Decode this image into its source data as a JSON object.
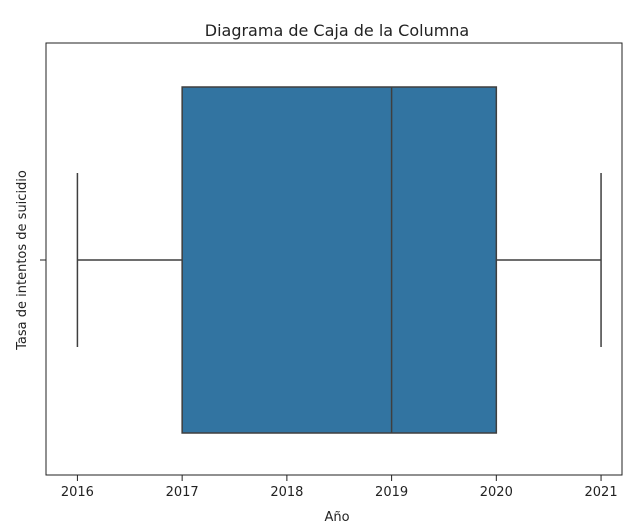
{
  "chart_data": {
    "type": "boxplot",
    "title": "Diagrama de Caja de la Columna",
    "xlabel": "Año",
    "ylabel": "Tasa de intentos de suicidio",
    "orientation": "horizontal",
    "xlim": [
      2015.7,
      2021.2
    ],
    "xticks": [
      2016,
      2017,
      2018,
      2019,
      2020,
      2021
    ],
    "xtick_labels": [
      "2016",
      "2017",
      "2018",
      "2019",
      "2020",
      "2021"
    ],
    "box": {
      "whisker_low": 2016,
      "q1": 2017,
      "median": 2019,
      "q3": 2020,
      "whisker_high": 2021
    },
    "box_color": "#3274a1",
    "line_color": "#3f3f3f",
    "grid": false,
    "legend": "none"
  }
}
